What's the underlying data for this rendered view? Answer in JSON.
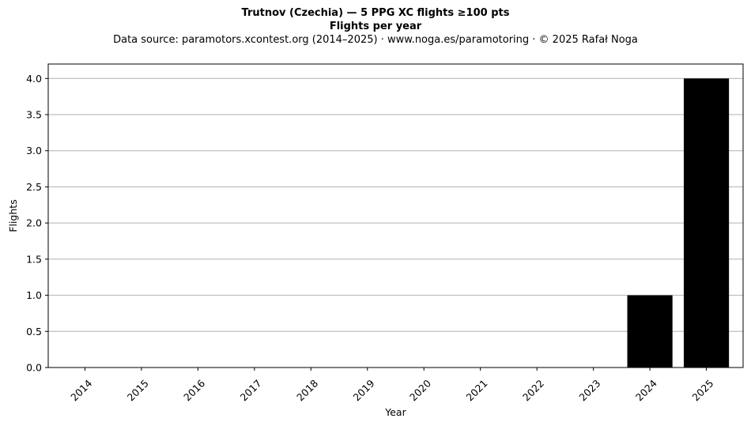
{
  "header": {
    "title": "Trutnov (Czechia)  —  5 PPG XC flights ≥100 pts",
    "subtitle": "Flights per year",
    "source": "Data source: paramotors.xcontest.org (2014–2025)  ·  www.noga.es/paramotoring  ·  © 2025 Rafał Noga"
  },
  "chart_data": {
    "type": "bar",
    "title": "Trutnov (Czechia)  —  5 PPG XC flights ≥100 pts",
    "subtitle": "Flights per year",
    "xlabel": "Year",
    "ylabel": "Flights",
    "categories": [
      "2014",
      "2015",
      "2016",
      "2017",
      "2018",
      "2019",
      "2020",
      "2021",
      "2022",
      "2023",
      "2024",
      "2025"
    ],
    "values": [
      0,
      0,
      0,
      0,
      0,
      0,
      0,
      0,
      0,
      0,
      1,
      4
    ],
    "ylim": [
      0,
      4.2
    ],
    "yticks": [
      "0.0",
      "0.5",
      "1.0",
      "1.5",
      "2.0",
      "2.5",
      "3.0",
      "3.5",
      "4.0"
    ],
    "grid": "y",
    "bar_color": "#000000",
    "grid_color": "#b0b0b0"
  }
}
